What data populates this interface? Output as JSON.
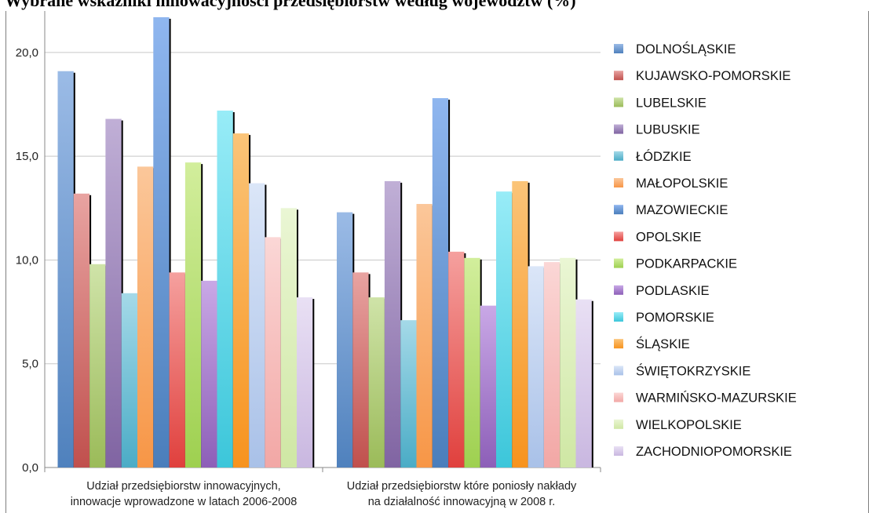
{
  "title": "Wybrane wskaźniki innowacyjności przedsiębiorstw według województw (%)",
  "chart_data": {
    "type": "bar",
    "ylim": [
      0,
      22
    ],
    "yticks": [
      0,
      5,
      10,
      15,
      20
    ],
    "ytick_labels": [
      "0,0",
      "5,0",
      "10,0",
      "15,0",
      "20,0"
    ],
    "grid": true,
    "legend_position": "right",
    "xlabel": "",
    "ylabel": "",
    "categories": [
      [
        "Udział przedsiębiorstw innowacyjnych,",
        "innowacje wprowadzone w latach 2006-2008"
      ],
      [
        "Udział przedsiębiorstw które poniosły nakłady",
        "na działalność innowacyjną w 2008 r."
      ]
    ],
    "series": [
      {
        "name": "DOLNOŚLĄSKIE",
        "color": "#4f81bd",
        "light": "#9bbbe6",
        "values": [
          19.1,
          12.3
        ]
      },
      {
        "name": "KUJAWSKO-POMORSKIE",
        "color": "#c0504d",
        "light": "#e8a3a1",
        "values": [
          13.2,
          9.4
        ]
      },
      {
        "name": "LUBELSKIE",
        "color": "#9bbb59",
        "light": "#cfe3a8",
        "values": [
          9.8,
          8.2
        ]
      },
      {
        "name": "LUBUSKIE",
        "color": "#8064a2",
        "light": "#c0afd6",
        "values": [
          16.8,
          13.8
        ]
      },
      {
        "name": "ŁÓDZKIE",
        "color": "#4bacc6",
        "light": "#a4d9e8",
        "values": [
          8.4,
          7.1
        ]
      },
      {
        "name": "MAŁOPOLSKIE",
        "color": "#f79646",
        "light": "#fbc79a",
        "values": [
          14.5,
          12.7
        ]
      },
      {
        "name": "MAZOWIECKIE",
        "color": "#4a7ebb",
        "light": "#8fb6ef",
        "values": [
          21.7,
          17.8
        ]
      },
      {
        "name": "OPOLSKIE",
        "color": "#e0403d",
        "light": "#f5a09e",
        "values": [
          9.4,
          10.4
        ]
      },
      {
        "name": "PODKARPACKIE",
        "color": "#9ed050",
        "light": "#d2ee9c",
        "values": [
          14.7,
          10.1
        ]
      },
      {
        "name": "PODLASKIE",
        "color": "#8d5fb8",
        "light": "#c9a8e6",
        "values": [
          9.0,
          7.8
        ]
      },
      {
        "name": "POMORSKIE",
        "color": "#3cc6da",
        "light": "#98ecf7",
        "values": [
          17.2,
          13.3
        ]
      },
      {
        "name": "ŚLĄSKIE",
        "color": "#f7931e",
        "light": "#fbc478",
        "values": [
          16.1,
          13.8
        ]
      },
      {
        "name": "ŚWIĘTOKRZYSKIE",
        "color": "#a9c1e8",
        "light": "#dbe6f8",
        "values": [
          13.7,
          9.7
        ]
      },
      {
        "name": "WARMIŃSKO-MAZURSKIE",
        "color": "#f2a7a5",
        "light": "#fbd7d6",
        "values": [
          11.1,
          9.9
        ]
      },
      {
        "name": "WIELKOPOLSKIE",
        "color": "#cfe7a4",
        "light": "#eaf6d4",
        "values": [
          12.5,
          10.1
        ]
      },
      {
        "name": "ZACHODNIOPOMORSKIE",
        "color": "#c9b7e0",
        "light": "#e9e0f4",
        "values": [
          8.2,
          8.1
        ]
      }
    ]
  }
}
